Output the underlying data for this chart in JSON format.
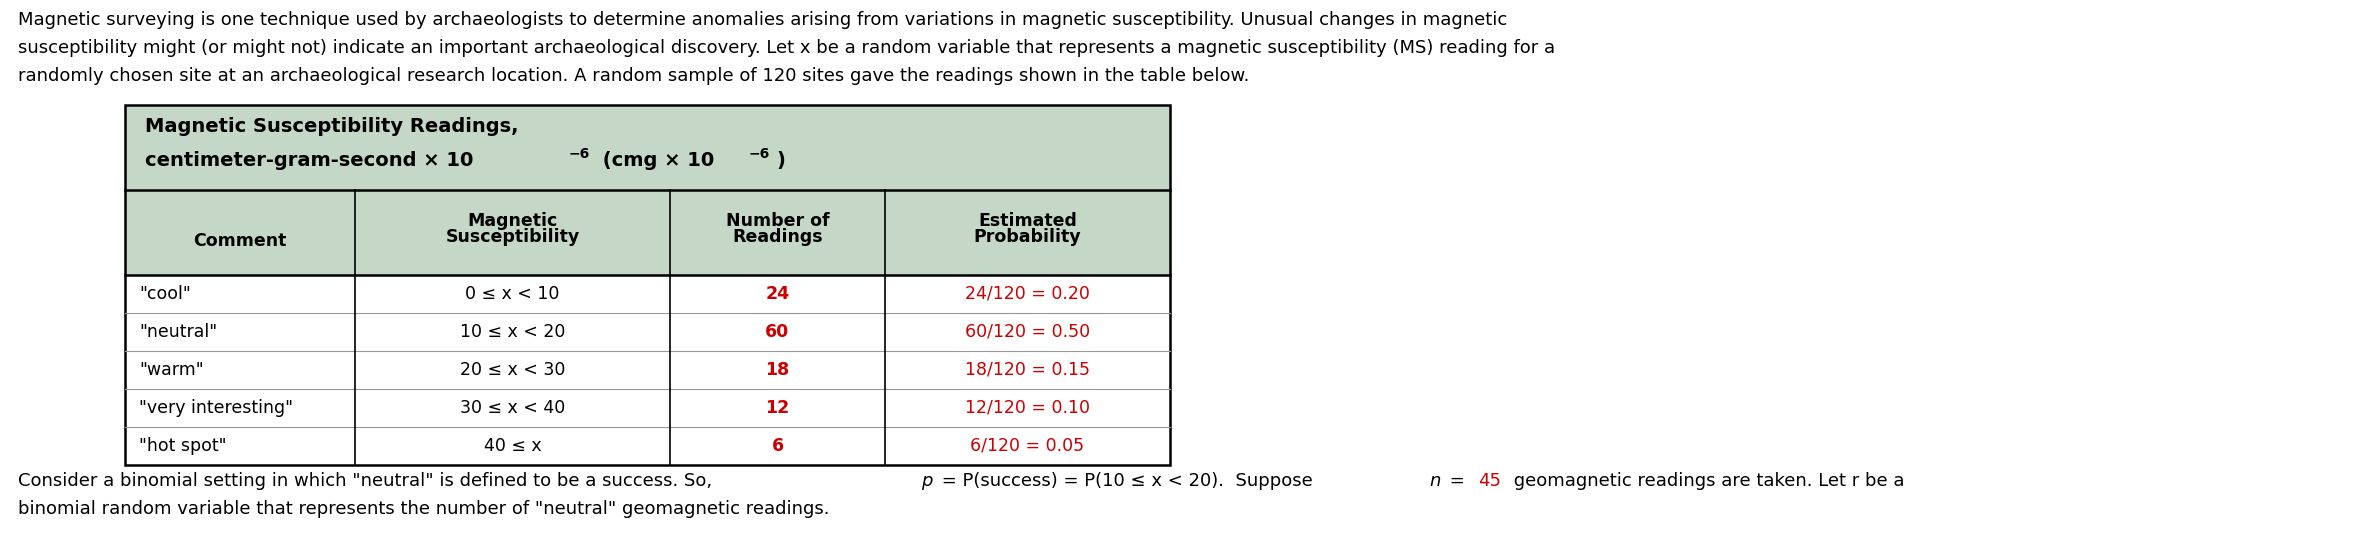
{
  "intro_line1": "Magnetic surveying is one technique used by archaeologists to determine anomalies arising from variations in magnetic susceptibility. Unusual changes in magnetic",
  "intro_line2": "susceptibility might (or might not) indicate an important archaeological discovery. Let x be a random variable that represents a magnetic susceptibility (MS) reading for a",
  "intro_line3": "randomly chosen site at an archaeological research location. A random sample of 120 sites gave the readings shown in the table below.",
  "table_title1": "Magnetic Susceptibility Readings,",
  "table_title2a": "centimeter-gram-second × 10",
  "table_title2_sup1": "−6",
  "table_title2b": " (cmg × 10",
  "table_title2_sup2": "−6",
  "table_title2c": ")",
  "col0_header": "Comment",
  "col1_header_line1": "Magnetic",
  "col1_header_line2": "Susceptibility",
  "col2_header_line1": "Number of",
  "col2_header_line2": "Readings",
  "col3_header_line1": "Estimated",
  "col3_header_line2": "Probability",
  "rows": [
    [
      "\"cool\"",
      "0 ≤ x < 10",
      "24",
      "24/120 = 0.20"
    ],
    [
      "\"neutral\"",
      "10 ≤ x < 20",
      "60",
      "60/120 = 0.50"
    ],
    [
      "\"warm\"",
      "20 ≤ x < 30",
      "18",
      "18/120 = 0.15"
    ],
    [
      "\"very interesting\"",
      "30 ≤ x < 40",
      "12",
      "12/120 = 0.10"
    ],
    [
      "\"hot spot\"",
      "40 ≤ x",
      "6",
      "6/120 = 0.05"
    ]
  ],
  "footer1a": "Consider a binomial setting in which \"neutral\" is defined to be a success. So, ",
  "footer1b": "p",
  "footer1c": " = P(success) = P(10 ≤ x < 20).  Suppose ",
  "footer1d": "n",
  "footer1e": " = ",
  "footer1f": "45",
  "footer1g": " geomagnetic readings are taken. Let r be a",
  "footer2": "binomial random variable that represents the number of \"neutral\" geomagnetic readings.",
  "header_bg": "#c5d8c8",
  "table_bg": "#ffffff",
  "border_color": "#000000",
  "red": "#cc0000",
  "black": "#000000",
  "bg": "#ffffff",
  "fs_body": 13.0,
  "fs_table": 12.5,
  "fs_sup": 10.0
}
